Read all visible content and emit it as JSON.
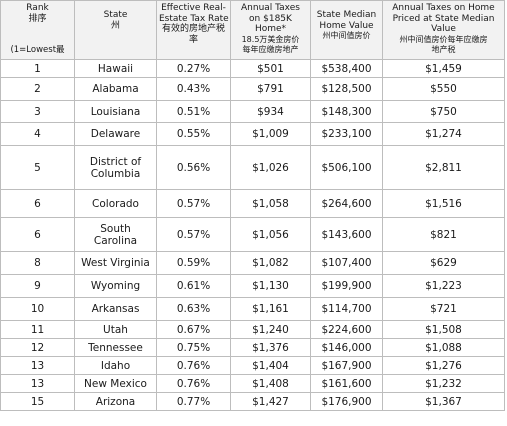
{
  "header": {
    "rank": [
      "Rank",
      "排序"
    ],
    "rank_note": "(1=Lowest最",
    "state": [
      "State",
      "州"
    ],
    "rate": [
      "Effective Real-",
      "Estate Tax Rate",
      "有效的房地产税",
      "率"
    ],
    "annual": [
      "Annual Taxes",
      "on $185K",
      "Home*",
      "18.5万美金房价",
      "每年应缴房地产"
    ],
    "median": [
      "State Median",
      "Home Value",
      "州中间值房价"
    ],
    "priced": [
      "Annual Taxes on Home",
      "Priced at State Median",
      "Value",
      "州中间值房价每年应缴房",
      "地产税"
    ]
  },
  "rows": [
    {
      "rank": "1",
      "state": "Hawaii",
      "rate": "0.27%",
      "annual": "$501",
      "median": "$538,400",
      "priced": "$1,459"
    },
    {
      "rank": "2",
      "state": "Alabama",
      "rate": "0.43%",
      "annual": "$791",
      "median": "$128,500",
      "priced": "$550"
    },
    {
      "rank": "3",
      "state": "Louisiana",
      "rate": "0.51%",
      "annual": "$934",
      "median": "$148,300",
      "priced": "$750"
    },
    {
      "rank": "4",
      "state": "Delaware",
      "rate": "0.55%",
      "annual": "$1,009",
      "median": "$233,100",
      "priced": "$1,274"
    },
    {
      "rank": "5",
      "state": "District of Columbia",
      "state_lines": [
        "District of",
        "Columbia"
      ],
      "rate": "0.56%",
      "annual": "$1,026",
      "median": "$506,100",
      "priced": "$2,811"
    },
    {
      "rank": "6",
      "state": "Colorado",
      "rate": "0.57%",
      "annual": "$1,058",
      "median": "$264,600",
      "priced": "$1,516"
    },
    {
      "rank": "6",
      "state": "South Carolina",
      "state_lines": [
        "South",
        "Carolina"
      ],
      "rate": "0.57%",
      "annual": "$1,056",
      "median": "$143,600",
      "priced": "$821"
    },
    {
      "rank": "8",
      "state": "West Virginia",
      "rate": "0.59%",
      "annual": "$1,082",
      "median": "$107,400",
      "priced": "$629"
    },
    {
      "rank": "9",
      "state": "Wyoming",
      "rate": "0.61%",
      "annual": "$1,130",
      "median": "$199,900",
      "priced": "$1,223"
    },
    {
      "rank": "10",
      "state": "Arkansas",
      "rate": "0.63%",
      "annual": "$1,161",
      "median": "$114,700",
      "priced": "$721"
    },
    {
      "rank": "11",
      "state": "Utah",
      "rate": "0.67%",
      "annual": "$1,240",
      "median": "$224,600",
      "priced": "$1,508"
    },
    {
      "rank": "12",
      "state": "Tennessee",
      "rate": "0.75%",
      "annual": "$1,376",
      "median": "$146,000",
      "priced": "$1,088"
    },
    {
      "rank": "13",
      "state": "Idaho",
      "rate": "0.76%",
      "annual": "$1,404",
      "median": "$167,900",
      "priced": "$1,276"
    },
    {
      "rank": "13",
      "state": "New Mexico",
      "rate": "0.76%",
      "annual": "$1,408",
      "median": "$161,600",
      "priced": "$1,232"
    },
    {
      "rank": "15",
      "state": "Arizona",
      "rate": "0.77%",
      "annual": "$1,427",
      "median": "$176,900",
      "priced": "$1,367"
    }
  ]
}
